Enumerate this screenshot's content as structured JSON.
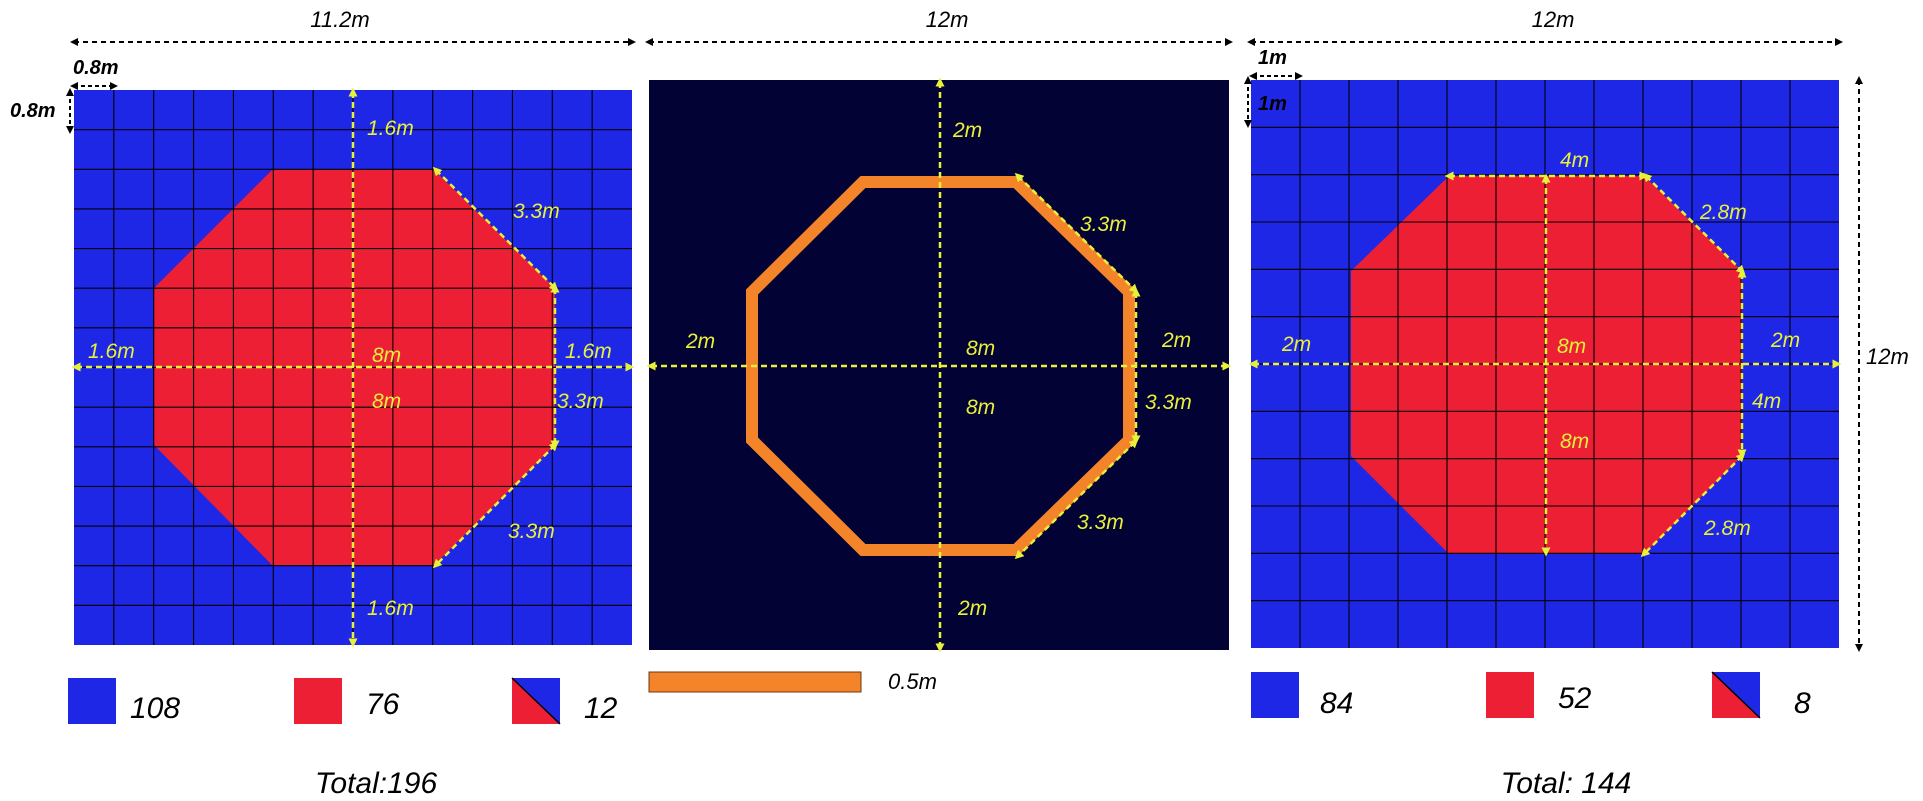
{
  "panel1": {
    "width_label": "11.2m",
    "cell_w_label": "0.8m",
    "cell_h_label": "0.8m",
    "top_gap": "1.6m",
    "bottom_gap": "1.6m",
    "left_gap": "1.6m",
    "right_gap": "1.6m",
    "diag_top": "3.3m",
    "diag_bottom": "3.3m",
    "right_side": "3.3m",
    "center_h": "8m",
    "center_v": "8m",
    "counts": {
      "blue": "108",
      "red": "76",
      "mixed": "12"
    },
    "total": "Total:196",
    "colors": {
      "outside": "#1e27e6",
      "inside": "#ec1f35"
    }
  },
  "panel2": {
    "width_label": "12m",
    "top_gap": "2m",
    "bottom_gap": "2m",
    "left_gap": "2m",
    "right_gap": "2m",
    "diag_top": "3.3m",
    "diag_bottom": "3.3m",
    "right_side": "3.3m",
    "center_h": "8m",
    "center_v": "8m",
    "scale_label": "0.5m",
    "colors": {
      "background": "#030235",
      "outline": "#f3842a"
    }
  },
  "panel3": {
    "width_label": "12m",
    "height_label": "12m",
    "cell_w_label": "1m",
    "cell_h_label": "1m",
    "top_side": "4m",
    "diag_top": "2.8m",
    "diag_bottom": "2.8m",
    "left_gap": "2m",
    "right_gap": "2m",
    "right_side": "4m",
    "center_h": "8m",
    "center_v": "8m",
    "counts": {
      "blue": "84",
      "red": "52",
      "mixed": "8"
    },
    "total": "Total: 144",
    "colors": {
      "outside": "#1e27e6",
      "inside": "#ec1f35"
    }
  }
}
